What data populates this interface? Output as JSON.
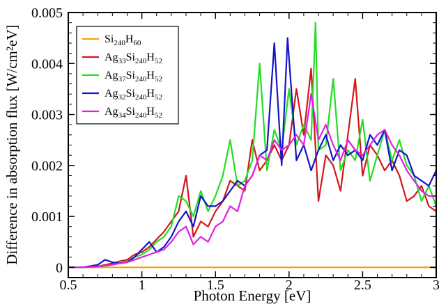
{
  "chart_data": {
    "type": "line",
    "title": "",
    "xlabel": "Photon Energy [eV]",
    "ylabel": "Difference in absorption flux [W/cm²eV]",
    "xlim": [
      0.5,
      3.0
    ],
    "ylim": [
      -0.0002,
      0.005
    ],
    "x_ticks": [
      0.5,
      1,
      1.5,
      2,
      2.5,
      3
    ],
    "x_tick_labels": [
      "0.5",
      "1",
      "1.5",
      "2",
      "2.5",
      "3"
    ],
    "y_ticks": [
      0,
      0.001,
      0.002,
      0.003,
      0.004,
      0.005
    ],
    "y_tick_labels": [
      "0",
      "0.001",
      "0.002",
      "0.003",
      "0.004",
      "0.005"
    ],
    "grid": false,
    "legend_position": "top-left",
    "series": [
      {
        "name": "Si240H60",
        "legend_parts": [
          [
            "Si",
            ""
          ],
          [
            "240",
            "sub"
          ],
          [
            "H",
            ""
          ],
          [
            "60",
            "sub"
          ]
        ],
        "color": "#f0a30a",
        "x": [
          0.5,
          3.0
        ],
        "y": [
          0.0,
          0.0
        ]
      },
      {
        "name": "Ag33Si240H52",
        "legend_parts": [
          [
            "Ag",
            ""
          ],
          [
            "33",
            "sub"
          ],
          [
            "Si",
            ""
          ],
          [
            "240",
            "sub"
          ],
          [
            "H",
            ""
          ],
          [
            "52",
            "sub"
          ]
        ],
        "color": "#d01818",
        "x": [
          0.5,
          0.6,
          0.7,
          0.8,
          0.85,
          0.9,
          0.95,
          1.0,
          1.05,
          1.1,
          1.15,
          1.2,
          1.25,
          1.3,
          1.35,
          1.4,
          1.45,
          1.5,
          1.55,
          1.6,
          1.65,
          1.7,
          1.75,
          1.8,
          1.85,
          1.9,
          1.95,
          2.0,
          2.05,
          2.1,
          2.15,
          2.2,
          2.25,
          2.3,
          2.35,
          2.4,
          2.45,
          2.5,
          2.55,
          2.6,
          2.65,
          2.7,
          2.75,
          2.8,
          2.85,
          2.9,
          2.95,
          3.0
        ],
        "y": [
          0.0,
          0.0,
          2e-05,
          8e-05,
          0.00012,
          0.00015,
          0.00025,
          0.0003,
          0.0004,
          0.00055,
          0.0007,
          0.0009,
          0.0011,
          0.0018,
          0.0006,
          0.0009,
          0.0008,
          0.0011,
          0.0013,
          0.0017,
          0.0016,
          0.0015,
          0.0025,
          0.0019,
          0.0021,
          0.0024,
          0.0021,
          0.0024,
          0.0035,
          0.0026,
          0.0039,
          0.0013,
          0.0022,
          0.002,
          0.0015,
          0.0026,
          0.0037,
          0.0018,
          0.0024,
          0.0022,
          0.0019,
          0.0021,
          0.0018,
          0.0013,
          0.0014,
          0.0016,
          0.0012,
          0.0011
        ]
      },
      {
        "name": "Ag37Si240H52",
        "legend_parts": [
          [
            "Ag",
            ""
          ],
          [
            "37",
            "sub"
          ],
          [
            "Si",
            ""
          ],
          [
            "240",
            "sub"
          ],
          [
            "H",
            ""
          ],
          [
            "52",
            "sub"
          ]
        ],
        "color": "#22dd22",
        "x": [
          0.5,
          0.6,
          0.7,
          0.8,
          0.85,
          0.9,
          0.95,
          1.0,
          1.05,
          1.1,
          1.15,
          1.2,
          1.25,
          1.3,
          1.35,
          1.4,
          1.45,
          1.5,
          1.55,
          1.6,
          1.65,
          1.7,
          1.75,
          1.8,
          1.85,
          1.9,
          1.95,
          2.0,
          2.05,
          2.1,
          2.15,
          2.18,
          2.2,
          2.25,
          2.3,
          2.35,
          2.4,
          2.45,
          2.5,
          2.55,
          2.6,
          2.65,
          2.7,
          2.75,
          2.8,
          2.85,
          2.9,
          2.95,
          3.0
        ],
        "y": [
          0.0,
          0.0,
          1e-05,
          5e-05,
          0.0001,
          0.00012,
          0.0002,
          0.00025,
          0.00035,
          0.0005,
          0.0006,
          0.0008,
          0.0014,
          0.0013,
          0.001,
          0.0015,
          0.0011,
          0.0014,
          0.0018,
          0.0025,
          0.0016,
          0.0017,
          0.0021,
          0.004,
          0.0019,
          0.0027,
          0.0023,
          0.0035,
          0.0024,
          0.0028,
          0.0025,
          0.0048,
          0.0023,
          0.0024,
          0.0037,
          0.0019,
          0.0023,
          0.0021,
          0.0029,
          0.0017,
          0.0022,
          0.0027,
          0.0021,
          0.0025,
          0.002,
          0.0018,
          0.0013,
          0.0016,
          0.0012
        ]
      },
      {
        "name": "Ag32Si240H52",
        "legend_parts": [
          [
            "Ag",
            ""
          ],
          [
            "32",
            "sub"
          ],
          [
            "Si",
            ""
          ],
          [
            "240",
            "sub"
          ],
          [
            "H",
            ""
          ],
          [
            "52",
            "sub"
          ]
        ],
        "color": "#1414c8",
        "x": [
          0.5,
          0.6,
          0.7,
          0.75,
          0.8,
          0.85,
          0.9,
          0.95,
          1.0,
          1.05,
          1.1,
          1.15,
          1.2,
          1.25,
          1.3,
          1.35,
          1.4,
          1.45,
          1.5,
          1.55,
          1.6,
          1.65,
          1.7,
          1.75,
          1.8,
          1.85,
          1.9,
          1.95,
          1.99,
          2.05,
          2.1,
          2.15,
          2.2,
          2.25,
          2.3,
          2.35,
          2.4,
          2.45,
          2.5,
          2.55,
          2.6,
          2.65,
          2.7,
          2.75,
          2.8,
          2.85,
          2.9,
          2.95,
          3.0
        ],
        "y": [
          0.0,
          0.0,
          5e-05,
          0.00015,
          0.0001,
          8e-05,
          0.0001,
          0.0002,
          0.00035,
          0.0005,
          0.0003,
          0.0004,
          0.0006,
          0.0009,
          0.0011,
          0.0008,
          0.0014,
          0.0012,
          0.0012,
          0.0013,
          0.0015,
          0.0017,
          0.0016,
          0.0018,
          0.0022,
          0.0023,
          0.0044,
          0.002,
          0.0045,
          0.0021,
          0.0024,
          0.0019,
          0.0023,
          0.0026,
          0.0021,
          0.0024,
          0.0022,
          0.0023,
          0.0021,
          0.0026,
          0.0024,
          0.0027,
          0.0019,
          0.0023,
          0.0022,
          0.0018,
          0.0017,
          0.0016,
          0.0019
        ]
      },
      {
        "name": "Ag34Si240H52",
        "legend_parts": [
          [
            "Ag",
            ""
          ],
          [
            "34",
            "sub"
          ],
          [
            "Si",
            ""
          ],
          [
            "240",
            "sub"
          ],
          [
            "H",
            ""
          ],
          [
            "52",
            "sub"
          ]
        ],
        "color": "#e020e0",
        "x": [
          0.5,
          0.6,
          0.7,
          0.8,
          0.85,
          0.9,
          0.95,
          1.0,
          1.05,
          1.1,
          1.15,
          1.2,
          1.25,
          1.3,
          1.35,
          1.4,
          1.45,
          1.5,
          1.55,
          1.6,
          1.65,
          1.7,
          1.75,
          1.8,
          1.85,
          1.9,
          1.95,
          2.0,
          2.05,
          2.1,
          2.15,
          2.2,
          2.25,
          2.3,
          2.35,
          2.4,
          2.45,
          2.5,
          2.55,
          2.6,
          2.65,
          2.7,
          2.75,
          2.8,
          2.85,
          2.9,
          2.95,
          3.0
        ],
        "y": [
          0.0,
          0.0,
          2e-05,
          5e-05,
          8e-05,
          0.0001,
          0.00015,
          0.0002,
          0.00025,
          0.0003,
          0.00035,
          0.0005,
          0.0007,
          0.0008,
          0.00045,
          0.0006,
          0.0005,
          0.0008,
          0.0009,
          0.0012,
          0.0011,
          0.0016,
          0.0018,
          0.0022,
          0.0021,
          0.0025,
          0.0023,
          0.0024,
          0.0026,
          0.0024,
          0.0034,
          0.0025,
          0.0028,
          0.0024,
          0.0021,
          0.0025,
          0.0023,
          0.0022,
          0.0024,
          0.0026,
          0.0027,
          0.0024,
          0.0022,
          0.0019,
          0.0017,
          0.0015,
          0.0014,
          0.0014
        ]
      }
    ]
  }
}
